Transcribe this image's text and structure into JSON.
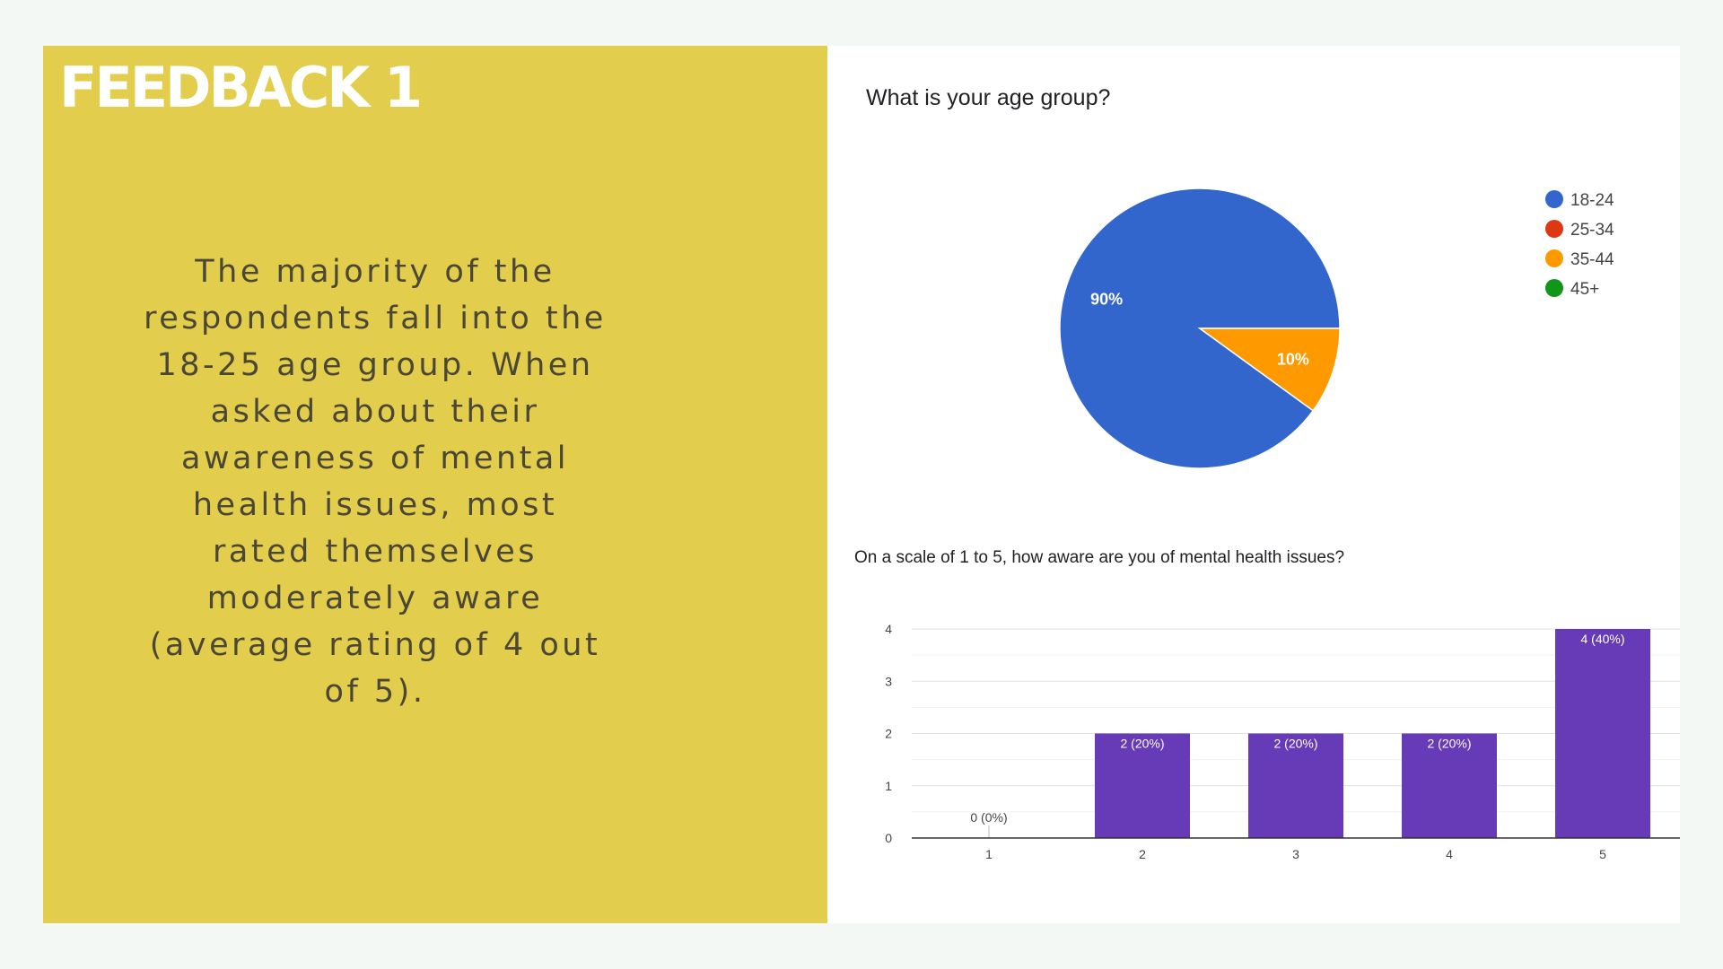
{
  "slide": {
    "title": "FEEDBACK 1",
    "body": "The majority of the respondents fall into the 18-25 age group. When asked about their awareness of mental health issues, most rated themselves moderately aware (average rating of 4 out of 5)."
  },
  "colors": {
    "panel": "#e2cd4c",
    "background": "#f3f8f5",
    "bar": "#673ab7"
  },
  "chart_data": [
    {
      "type": "pie",
      "title": "What is your age group?",
      "categories": [
        "18-24",
        "25-34",
        "35-44",
        "45+"
      ],
      "values": [
        90,
        0,
        10,
        0
      ],
      "slice_labels": [
        "90%",
        "",
        "10%",
        ""
      ],
      "colors": [
        "#3366cc",
        "#dc3912",
        "#ff9900",
        "#109618"
      ],
      "legend": "right"
    },
    {
      "type": "bar",
      "title": "On a scale of 1 to 5, how aware are you of mental health issues?",
      "categories": [
        "1",
        "2",
        "3",
        "4",
        "5"
      ],
      "values": [
        0,
        2,
        2,
        2,
        4
      ],
      "data_labels": [
        "0 (0%)",
        "2 (20%)",
        "2 (20%)",
        "2 (20%)",
        "4 (40%)"
      ],
      "y_ticks": [
        "0",
        "1",
        "2",
        "3",
        "4"
      ],
      "ylim": [
        0,
        4
      ],
      "grid": true
    }
  ]
}
